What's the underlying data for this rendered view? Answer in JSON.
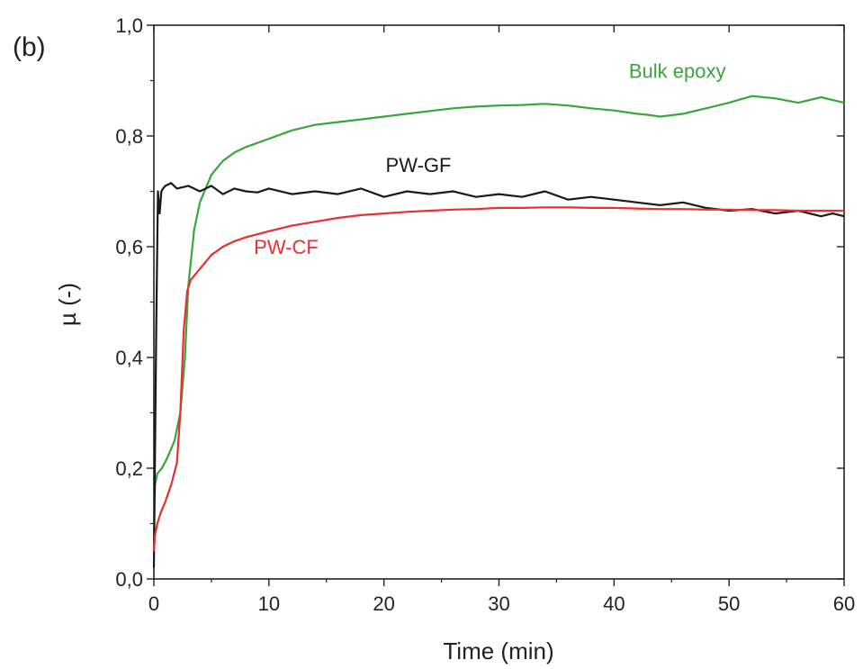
{
  "panel_label": "(b)",
  "chart_data": {
    "type": "line",
    "xlabel": "Time (min)",
    "ylabel": "µ (-)",
    "xlim": [
      0,
      60
    ],
    "ylim": [
      0,
      1.0
    ],
    "xticks": [
      0,
      10,
      20,
      30,
      40,
      50,
      60
    ],
    "xtick_labels": [
      "0",
      "10",
      "20",
      "30",
      "40",
      "50",
      "60"
    ],
    "yticks": [
      0,
      0.2,
      0.4,
      0.6,
      0.8,
      1.0
    ],
    "ytick_labels": [
      "0,0",
      "0,2",
      "0,4",
      "0,6",
      "0,8",
      "1,0"
    ],
    "grid": false,
    "series": [
      {
        "name": "Bulk epoxy",
        "color": "#3aa63a",
        "x": [
          0,
          0.1,
          0.3,
          0.7,
          1.2,
          1.8,
          2.3,
          2.7,
          3.0,
          3.5,
          4.0,
          5.0,
          6.0,
          7.0,
          8.0,
          10.0,
          12.0,
          14.0,
          16.0,
          18.0,
          20.0,
          22.0,
          24.0,
          26.0,
          28.0,
          30.0,
          32.0,
          34.0,
          36.0,
          38.0,
          40.0,
          42.0,
          43.0,
          44.0,
          46.0,
          48.0,
          50.0,
          52.0,
          54.0,
          56.0,
          58.0,
          60.0
        ],
        "y": [
          0.1,
          0.17,
          0.19,
          0.2,
          0.22,
          0.25,
          0.3,
          0.4,
          0.53,
          0.63,
          0.68,
          0.73,
          0.755,
          0.77,
          0.78,
          0.795,
          0.81,
          0.82,
          0.825,
          0.83,
          0.835,
          0.84,
          0.845,
          0.85,
          0.853,
          0.855,
          0.856,
          0.858,
          0.855,
          0.85,
          0.846,
          0.84,
          0.838,
          0.835,
          0.84,
          0.85,
          0.86,
          0.872,
          0.868,
          0.86,
          0.87,
          0.86
        ]
      },
      {
        "name": "PW-GF",
        "color": "#1a1a1a",
        "x": [
          0,
          0.2,
          0.35,
          0.5,
          0.65,
          0.8,
          1.0,
          1.5,
          2.0,
          3.0,
          4.0,
          5.0,
          6.0,
          7.0,
          8.0,
          9.0,
          10.0,
          12.0,
          14.0,
          16.0,
          18.0,
          20.0,
          22.0,
          24.0,
          26.0,
          28.0,
          30.0,
          32.0,
          34.0,
          36.0,
          38.0,
          40.0,
          42.0,
          44.0,
          46.0,
          48.0,
          50.0,
          52.0,
          54.0,
          56.0,
          58.0,
          59.0,
          60.0
        ],
        "y": [
          0.02,
          0.45,
          0.7,
          0.66,
          0.7,
          0.705,
          0.71,
          0.715,
          0.705,
          0.71,
          0.7,
          0.71,
          0.695,
          0.705,
          0.7,
          0.698,
          0.705,
          0.695,
          0.7,
          0.695,
          0.705,
          0.69,
          0.7,
          0.695,
          0.7,
          0.69,
          0.695,
          0.69,
          0.7,
          0.685,
          0.69,
          0.685,
          0.68,
          0.675,
          0.68,
          0.67,
          0.665,
          0.668,
          0.66,
          0.665,
          0.655,
          0.66,
          0.655
        ]
      },
      {
        "name": "PW-CF",
        "color": "#e83030",
        "x": [
          0,
          0.1,
          0.3,
          0.6,
          1.0,
          1.5,
          2.0,
          2.3,
          2.6,
          2.9,
          3.2,
          3.6,
          4.0,
          5.0,
          6.0,
          7.0,
          8.0,
          10.0,
          12.0,
          14.0,
          16.0,
          18.0,
          20.0,
          22.0,
          24.0,
          26.0,
          28.0,
          30.0,
          32.0,
          34.0,
          36.0,
          38.0,
          40.0,
          42.0,
          44.0,
          46.0,
          48.0,
          50.0,
          52.0,
          54.0,
          56.0,
          58.0,
          60.0
        ],
        "y": [
          0.05,
          0.08,
          0.1,
          0.12,
          0.14,
          0.17,
          0.21,
          0.3,
          0.45,
          0.52,
          0.54,
          0.55,
          0.56,
          0.585,
          0.6,
          0.61,
          0.617,
          0.628,
          0.638,
          0.645,
          0.652,
          0.657,
          0.66,
          0.663,
          0.665,
          0.667,
          0.668,
          0.67,
          0.67,
          0.671,
          0.671,
          0.67,
          0.67,
          0.669,
          0.668,
          0.668,
          0.667,
          0.667,
          0.666,
          0.666,
          0.665,
          0.665,
          0.665
        ]
      }
    ],
    "annotations": [
      {
        "series": "Bulk epoxy",
        "text": "Bulk epoxy",
        "x": 45.5,
        "y": 0.905,
        "color": "#3aa63a"
      },
      {
        "series": "PW-GF",
        "text": "PW-GF",
        "x": 23.0,
        "y": 0.735,
        "color": "#1a1a1a"
      },
      {
        "series": "PW-CF",
        "text": "PW-CF",
        "x": 11.5,
        "y": 0.587,
        "color": "#e83030"
      }
    ]
  }
}
